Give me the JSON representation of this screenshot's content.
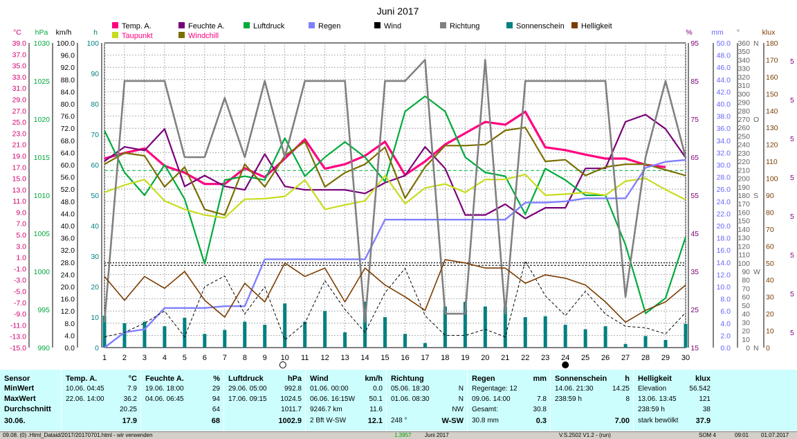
{
  "title": "Juni 2017",
  "colors": {
    "temp": "#ff0080",
    "dew": "#c8dc1e",
    "hum": "#780078",
    "windchill": "#7a6e00",
    "press": "#00aa3c",
    "rain": "#8080ff",
    "wind": "#000000",
    "dir": "#808080",
    "sun": "#008080",
    "bright": "#7a3c00",
    "panel": "#ccfefe"
  },
  "legend": [
    {
      "label": "Temp. A.",
      "color": "#ff0080"
    },
    {
      "label": "Feuchte A.",
      "color": "#780078"
    },
    {
      "label": "Luftdruck",
      "color": "#00aa3c"
    },
    {
      "label": "Regen",
      "color": "#8080ff"
    },
    {
      "label": "Wind",
      "color": "#000000"
    },
    {
      "label": "Richtung",
      "color": "#808080"
    },
    {
      "label": "Sonnenschein",
      "color": "#008080"
    },
    {
      "label": "Helligkeit",
      "color": "#7a3c00"
    },
    {
      "label": "Taupunkt",
      "color": "#c8dc1e"
    },
    {
      "label": "Windchill",
      "color": "#7a6e00"
    }
  ],
  "units": {
    "temp": "°C",
    "press": "hPa",
    "wind": "km/h",
    "sun": "h",
    "hum": "%",
    "rain": "mm",
    "dir": "°",
    "bright": "klux"
  },
  "chart_data": {
    "type": "line",
    "x": [
      1,
      2,
      3,
      4,
      5,
      6,
      7,
      8,
      9,
      10,
      11,
      12,
      13,
      14,
      15,
      16,
      17,
      18,
      19,
      20,
      21,
      22,
      23,
      24,
      25,
      26,
      27,
      28,
      29,
      30
    ],
    "axes": {
      "temp": {
        "range": [
          -15,
          39
        ],
        "ticks": [
          "39.0",
          "37.0",
          "35.0",
          "33.0",
          "31.0",
          "29.0",
          "27.0",
          "25.0",
          "23.0",
          "21.0",
          "19.0",
          "17.0",
          "15.0",
          "13.0",
          "11.0",
          "9.0",
          "7.0",
          "5.0",
          "3.0",
          "1.0",
          "-1.0",
          "-3.0",
          "-5.0",
          "-7.0",
          "-9.0",
          "-11.0",
          "-13.0",
          "-15.0"
        ]
      },
      "press": {
        "range": [
          990,
          1030
        ],
        "ticks": [
          "1030",
          "1025",
          "1020",
          "1015",
          "1010",
          "1005",
          "1000",
          "995",
          "990"
        ]
      },
      "wind": {
        "range": [
          0,
          100
        ],
        "ticks": [
          "100.0",
          "96.0",
          "92.0",
          "88.0",
          "84.0",
          "80.0",
          "76.0",
          "72.0",
          "68.0",
          "64.0",
          "60.0",
          "56.0",
          "52.0",
          "48.0",
          "44.0",
          "40.0",
          "36.0",
          "32.0",
          "28.0",
          "24.0",
          "20.0",
          "16.0",
          "12.0",
          "8.0",
          "4.0",
          "0.0"
        ]
      },
      "sun": {
        "range": [
          0,
          100
        ],
        "ticks": [
          "100",
          "90",
          "80",
          "70",
          "60",
          "50",
          "40",
          "30",
          "20",
          "10",
          "0"
        ]
      },
      "hum": {
        "range": [
          15,
          100
        ],
        "ticks": [
          "95",
          "85",
          "75",
          "65",
          "55",
          "45",
          "35",
          "25",
          "15"
        ]
      },
      "rain": {
        "range": [
          0,
          50
        ],
        "ticks": [
          "50.0",
          "48.0",
          "46.0",
          "44.0",
          "42.0",
          "40.0",
          "38.0",
          "36.0",
          "34.0",
          "32.0",
          "30.0",
          "28.0",
          "26.0",
          "24.0",
          "22.0",
          "20.0",
          "18.0",
          "16.0",
          "14.0",
          "12.0",
          "10.0",
          "8.0",
          "6.0",
          "4.0",
          "2.0",
          "0.0"
        ]
      },
      "dir": {
        "range": [
          0,
          360
        ],
        "ticks": [
          "360",
          "350",
          "340",
          "330",
          "320",
          "310",
          "300",
          "290",
          "280",
          "270",
          "260",
          "250",
          "240",
          "230",
          "220",
          "210",
          "200",
          "190",
          "180",
          "170",
          "160",
          "150",
          "140",
          "130",
          "120",
          "110",
          "100",
          "90",
          "80",
          "70",
          "60",
          "50",
          "40",
          "30",
          "20",
          "10",
          "0"
        ],
        "letters": [
          "N",
          "W",
          "S",
          "O",
          "N"
        ]
      },
      "bright": {
        "range": [
          0,
          180
        ],
        "ticks": [
          "180",
          "170",
          "160",
          "150",
          "140",
          "130",
          "120",
          "110",
          "100",
          "90",
          "80",
          "70",
          "60",
          "50",
          "40",
          "30",
          "20",
          "10",
          "0"
        ]
      }
    },
    "far_right_marks": [
      "5",
      "5",
      "5",
      "5",
      "5",
      "5",
      "5",
      "5"
    ],
    "moon_days": [
      9.9,
      24
    ],
    "series": [
      {
        "name": "Temp. A.",
        "color": "#ff0080",
        "axis": "temp",
        "values": [
          18.5,
          19.5,
          20.3,
          17.2,
          16.0,
          14.0,
          14.0,
          16.8,
          15.2,
          18.5,
          21.9,
          16.7,
          17.5,
          19.0,
          21.5,
          15.6,
          18.0,
          21.0,
          23.0,
          25.0,
          24.5,
          26.8,
          20.5,
          20.0,
          19.2,
          18.5,
          18.5,
          17.4,
          17.0,
          null
        ]
      },
      {
        "name": "Feuchte A.",
        "color": "#780078",
        "axis": "hum",
        "values": [
          67,
          71,
          70,
          76,
          60,
          63,
          60,
          59,
          69,
          60,
          59,
          59,
          59,
          58,
          61,
          63,
          71,
          65,
          52,
          52,
          55,
          51,
          54,
          54,
          65,
          65,
          78,
          80,
          76,
          68
        ]
      },
      {
        "name": "Luftdruck",
        "color": "#00aa3c",
        "axis": "press",
        "values": [
          1018.5,
          1013.0,
          1010.0,
          1014.0,
          1009.5,
          1001.0,
          1012.0,
          1012.5,
          1012.0,
          1017.5,
          1012.5,
          1015.0,
          1017.0,
          1015.0,
          1011.8,
          1021.0,
          1023.0,
          1021.0,
          1015.0,
          1013.0,
          1012.5,
          1007.5,
          1013.5,
          1012.0,
          1010.0,
          1010.0,
          1003.5,
          994.5,
          996.5,
          1004.5
        ]
      },
      {
        "name": "Taupunkt",
        "color": "#c8dc1e",
        "axis": "temp",
        "values": [
          12.5,
          13.8,
          14.8,
          11.0,
          9.5,
          8.5,
          8.0,
          11.3,
          11.4,
          11.8,
          14.7,
          9.5,
          10.3,
          11.0,
          15.5,
          10.5,
          13.3,
          14.0,
          12.5,
          14.8,
          14.8,
          15.7,
          12.0,
          12.2,
          12.5,
          12.0,
          14.5,
          15.0,
          13.0,
          11.2
        ]
      },
      {
        "name": "Windchill",
        "color": "#7a6e00",
        "axis": "temp",
        "values": [
          17.5,
          19.5,
          19.0,
          13.5,
          17.0,
          9.5,
          8.5,
          17.5,
          13.5,
          19.0,
          21.5,
          13.5,
          16.0,
          17.5,
          20.5,
          11.5,
          17.0,
          20.8,
          20.8,
          21.0,
          23.5,
          24.0,
          18.0,
          18.3,
          15.5,
          17.0,
          17.5,
          17.5,
          16.5,
          15.5
        ]
      },
      {
        "name": "Regen",
        "color": "#8080ff",
        "axis": "rain",
        "values": [
          0,
          2.5,
          3.0,
          6.5,
          6.5,
          6.5,
          6.8,
          6.8,
          14.5,
          14.5,
          14.5,
          14.5,
          14.5,
          14.5,
          21.0,
          21.0,
          21.0,
          21.0,
          21.0,
          21.0,
          21.0,
          23.8,
          23.8,
          24.0,
          24.5,
          24.5,
          24.5,
          29.5,
          30.5,
          30.8
        ]
      },
      {
        "name": "Wind",
        "color": "#000000",
        "axis": "wind",
        "values": [
          3.5,
          5.0,
          8.0,
          12.0,
          3.5,
          20.0,
          23.5,
          11.0,
          20.0,
          2.5,
          8.0,
          22.0,
          12.5,
          5.0,
          18.0,
          26.0,
          10.5,
          4.0,
          4.0,
          6.0,
          3.5,
          28.5,
          17.0,
          10.5,
          18.5,
          11.0,
          7.0,
          6.5,
          4.5,
          11.5
        ]
      },
      {
        "name": "Richtung",
        "color": "#808080",
        "axis": "dir",
        "values": [
          30,
          315,
          315,
          315,
          225,
          225,
          295,
          225,
          315,
          225,
          315,
          315,
          315,
          30,
          315,
          315,
          340,
          40,
          40,
          340,
          40,
          315,
          315,
          315,
          315,
          315,
          60,
          225,
          315,
          225
        ]
      },
      {
        "name": "Helligkeit",
        "color": "#7a3c00",
        "axis": "bright",
        "values": [
          42,
          28,
          42,
          35,
          45,
          28,
          18,
          38,
          27,
          50,
          42,
          47,
          27,
          47,
          37,
          30,
          22,
          52,
          50,
          47,
          47,
          38,
          43,
          41,
          37,
          27,
          15,
          22,
          27,
          37
        ]
      },
      {
        "name": "Sonnenschein",
        "type": "bar",
        "color": "#008080",
        "axis": "sun",
        "values": [
          10.5,
          8.0,
          8.5,
          7.0,
          9.8,
          4.5,
          5.8,
          8.5,
          7.5,
          14.5,
          8.5,
          12.0,
          5.0,
          15.0,
          10.0,
          4.5,
          1.5,
          13.5,
          15.0,
          13.5,
          13.5,
          10.0,
          10.3,
          7.5,
          6.0,
          7.0,
          1.2,
          3.8,
          2.5,
          7.8
        ]
      }
    ]
  },
  "stats": {
    "sensor": {
      "title": "Sensor",
      "rows": [
        "MinWert",
        "MaxWert",
        "Durchschnitt"
      ],
      "last": "30.06."
    },
    "temp": {
      "title": "Temp. A.",
      "unit": "°C",
      "rows": [
        [
          "10.06.  04:45",
          "7.9"
        ],
        [
          "22.06.  14:00",
          "36.2"
        ],
        [
          "",
          "20.25"
        ]
      ],
      "last": "17.9"
    },
    "hum": {
      "title": "Feuchte A.",
      "unit": "%",
      "rows": [
        [
          "19.06.  18:00",
          "29"
        ],
        [
          "04.06.  06:45",
          "94"
        ],
        [
          "",
          "64"
        ]
      ],
      "last": "68"
    },
    "press": {
      "title": "Luftdruck",
      "unit": "hPa",
      "rows": [
        [
          "29.06.  05:00",
          "992.8"
        ],
        [
          "17.06.  09:15",
          "1024.5"
        ],
        [
          "",
          "1011.7"
        ]
      ],
      "last": "1002.9"
    },
    "wind": {
      "title": "Wind",
      "unit": "km/h",
      "rows": [
        [
          "01.06.  00:00",
          "0.0"
        ],
        [
          "06.06.  16:15W",
          "50.1"
        ],
        [
          "9246.7 km",
          "11.6"
        ]
      ],
      "last_left": "2 Bft W-SW",
      "last": "12.1"
    },
    "dir": {
      "title": "Richtung",
      "unit": "",
      "rows": [
        [
          "05.06.  18:30",
          "N"
        ],
        [
          "01.06.  08:30",
          "N"
        ],
        [
          "",
          "NW"
        ]
      ],
      "last_left": "248 °",
      "last": "W-SW"
    },
    "rain": {
      "title": "Regen",
      "unit": "mm",
      "rows": [
        [
          "Regentage: 12",
          ""
        ],
        [
          "09.06.  14:00",
          "7.8"
        ],
        [
          "Gesamt:",
          "30.8"
        ]
      ],
      "last_left": "30.8 mm",
      "last": "0.3"
    },
    "sun": {
      "title": "Sonnenschein",
      "unit": "h",
      "rows": [
        [
          "14.06.  21:30",
          "14.25"
        ],
        [
          "238:59 h",
          "8"
        ],
        [
          "",
          ""
        ]
      ],
      "last": "7.00"
    },
    "bright": {
      "title": "Helligkeit",
      "unit": "klux",
      "rows": [
        [
          "Elevation",
          "56.542"
        ],
        [
          "13.06.  13:45",
          "121"
        ],
        [
          "238:59 h",
          "38"
        ]
      ],
      "last_left": "stark bewölkt",
      "last": "37.9"
    }
  },
  "status": [
    "09.08. (0) .Html_Dataid/2017/20170701.html - wir verwenden",
    "1.3957",
    "Juni 2017",
    "V.S.2502 V1.2 - (run)",
    "SOM 4",
    "09:01",
    "01.07.2017"
  ]
}
